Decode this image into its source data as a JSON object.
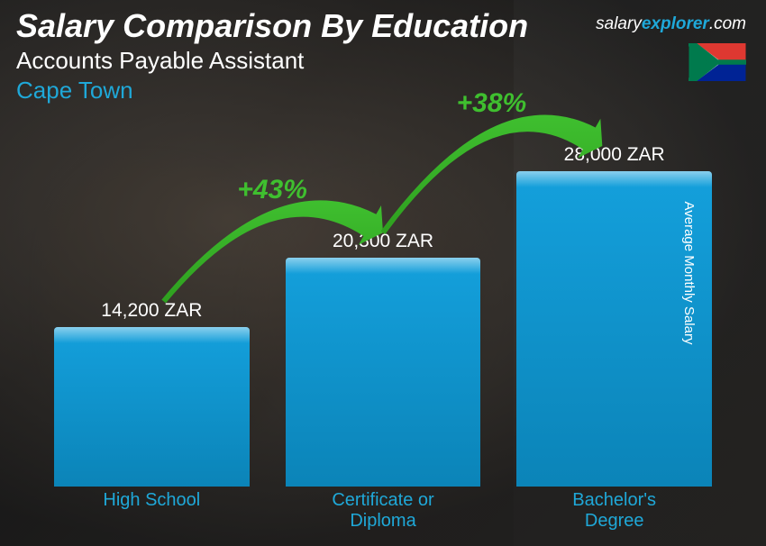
{
  "title": "Salary Comparison By Education",
  "subtitle": "Accounts Payable Assistant",
  "location": "Cape Town",
  "brand_part1": "salary",
  "brand_part2": "explorer",
  "brand_part3": ".com",
  "axis_label": "Average Monthly Salary",
  "colors": {
    "accent": "#1fa8d8",
    "bar_fill": "#14a0dc",
    "bar_fill_dark": "#0b84b8",
    "arrow_green": "#3fbf2f",
    "arrow_green_dark": "#2e9f1f",
    "white": "#ffffff"
  },
  "chart": {
    "type": "bar",
    "ylim": [
      0,
      28000
    ],
    "bars": [
      {
        "label": "High School",
        "value": 14200,
        "value_label": "14,200 ZAR"
      },
      {
        "label": "Certificate or\nDiploma",
        "value": 20300,
        "value_label": "20,300 ZAR"
      },
      {
        "label": "Bachelor's\nDegree",
        "value": 28000,
        "value_label": "28,000 ZAR"
      }
    ],
    "increases": [
      {
        "from": 0,
        "to": 1,
        "pct": "+43%"
      },
      {
        "from": 1,
        "to": 2,
        "pct": "+38%"
      }
    ]
  },
  "flag": {
    "country": "South Africa",
    "colors": {
      "red": "#de3831",
      "blue": "#002395",
      "green": "#007a4d",
      "yellow": "#ffb612",
      "black": "#000000",
      "white": "#ffffff"
    }
  }
}
